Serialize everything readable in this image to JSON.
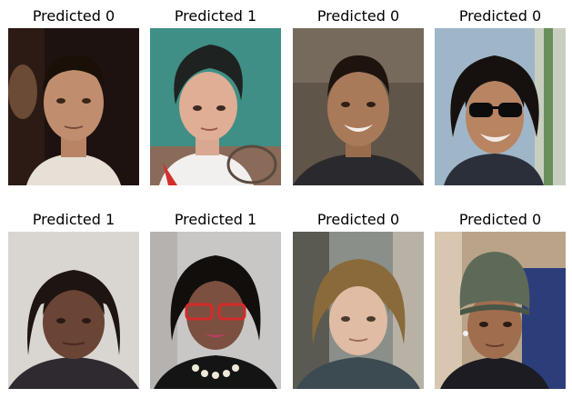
{
  "panels": [
    {
      "label": "Predicted 0"
    },
    {
      "label": "Predicted 1"
    },
    {
      "label": "Predicted 0"
    },
    {
      "label": "Predicted 0"
    },
    {
      "label": "Predicted 1"
    },
    {
      "label": "Predicted 1"
    },
    {
      "label": "Predicted 0"
    },
    {
      "label": "Predicted 0"
    }
  ]
}
